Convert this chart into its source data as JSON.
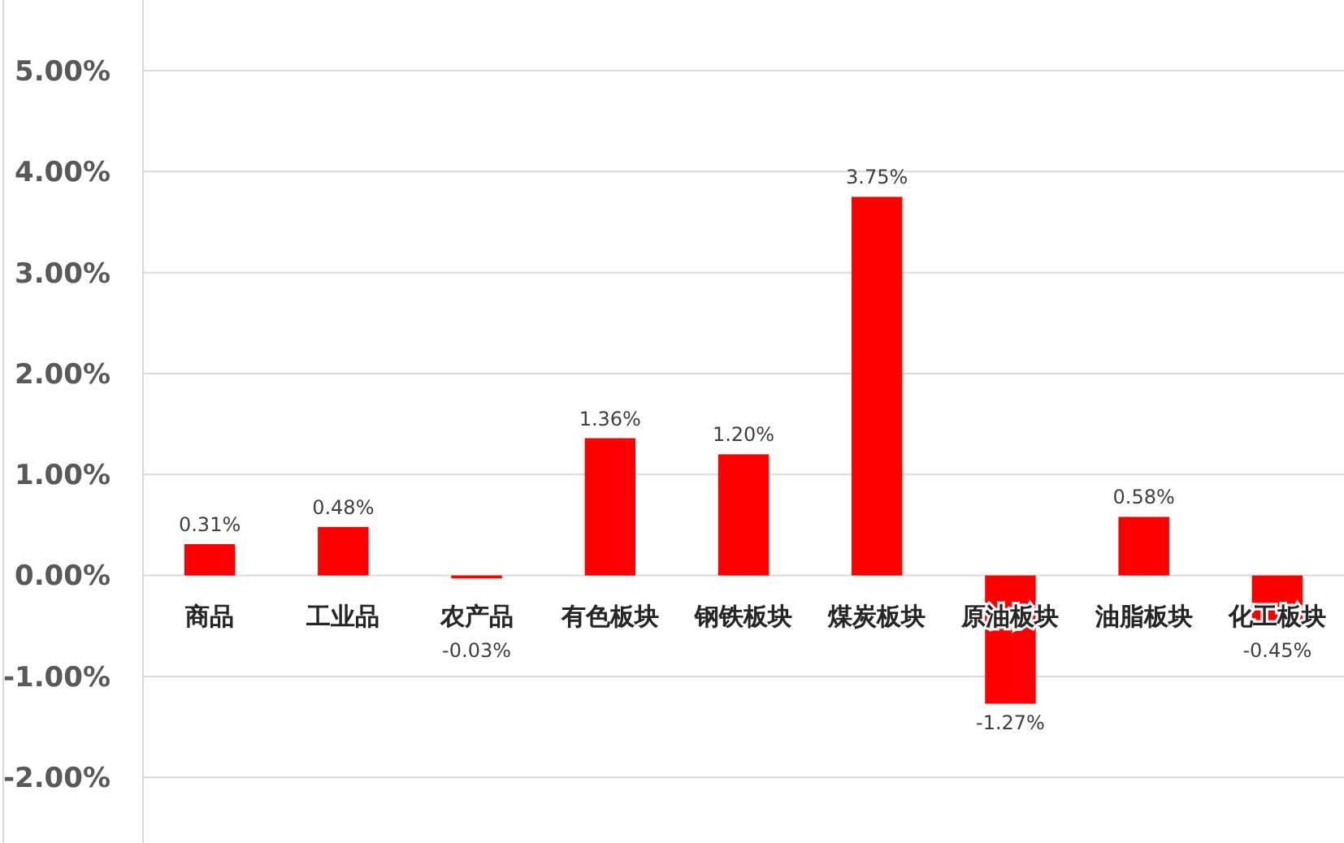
{
  "chart_data": {
    "type": "bar",
    "categories": [
      "商品",
      "工业品",
      "农产品",
      "有色板块",
      "钢铁板块",
      "煤炭板块",
      "原油板块",
      "油脂板块",
      "化工板块"
    ],
    "values": [
      0.31,
      0.48,
      -0.03,
      1.36,
      1.2,
      3.75,
      -1.27,
      0.58,
      -0.45
    ],
    "value_labels": [
      "0.31%",
      "0.48%",
      "-0.03%",
      "1.36%",
      "1.20%",
      "3.75%",
      "-1.27%",
      "0.58%",
      "-0.45%"
    ],
    "color": "#ff0000",
    "ylim": [
      -2.65,
      5.7
    ],
    "yticks": [
      {
        "value": -2,
        "label": "-2.00%"
      },
      {
        "value": -1,
        "label": "-1.00%"
      },
      {
        "value": 0,
        "label": "0.00%"
      },
      {
        "value": 1,
        "label": "1.00%"
      },
      {
        "value": 2,
        "label": "2.00%"
      },
      {
        "value": 3,
        "label": "3.00%"
      },
      {
        "value": 4,
        "label": "4.00%"
      },
      {
        "value": 5,
        "label": "5.00%"
      }
    ],
    "grid": "y"
  }
}
